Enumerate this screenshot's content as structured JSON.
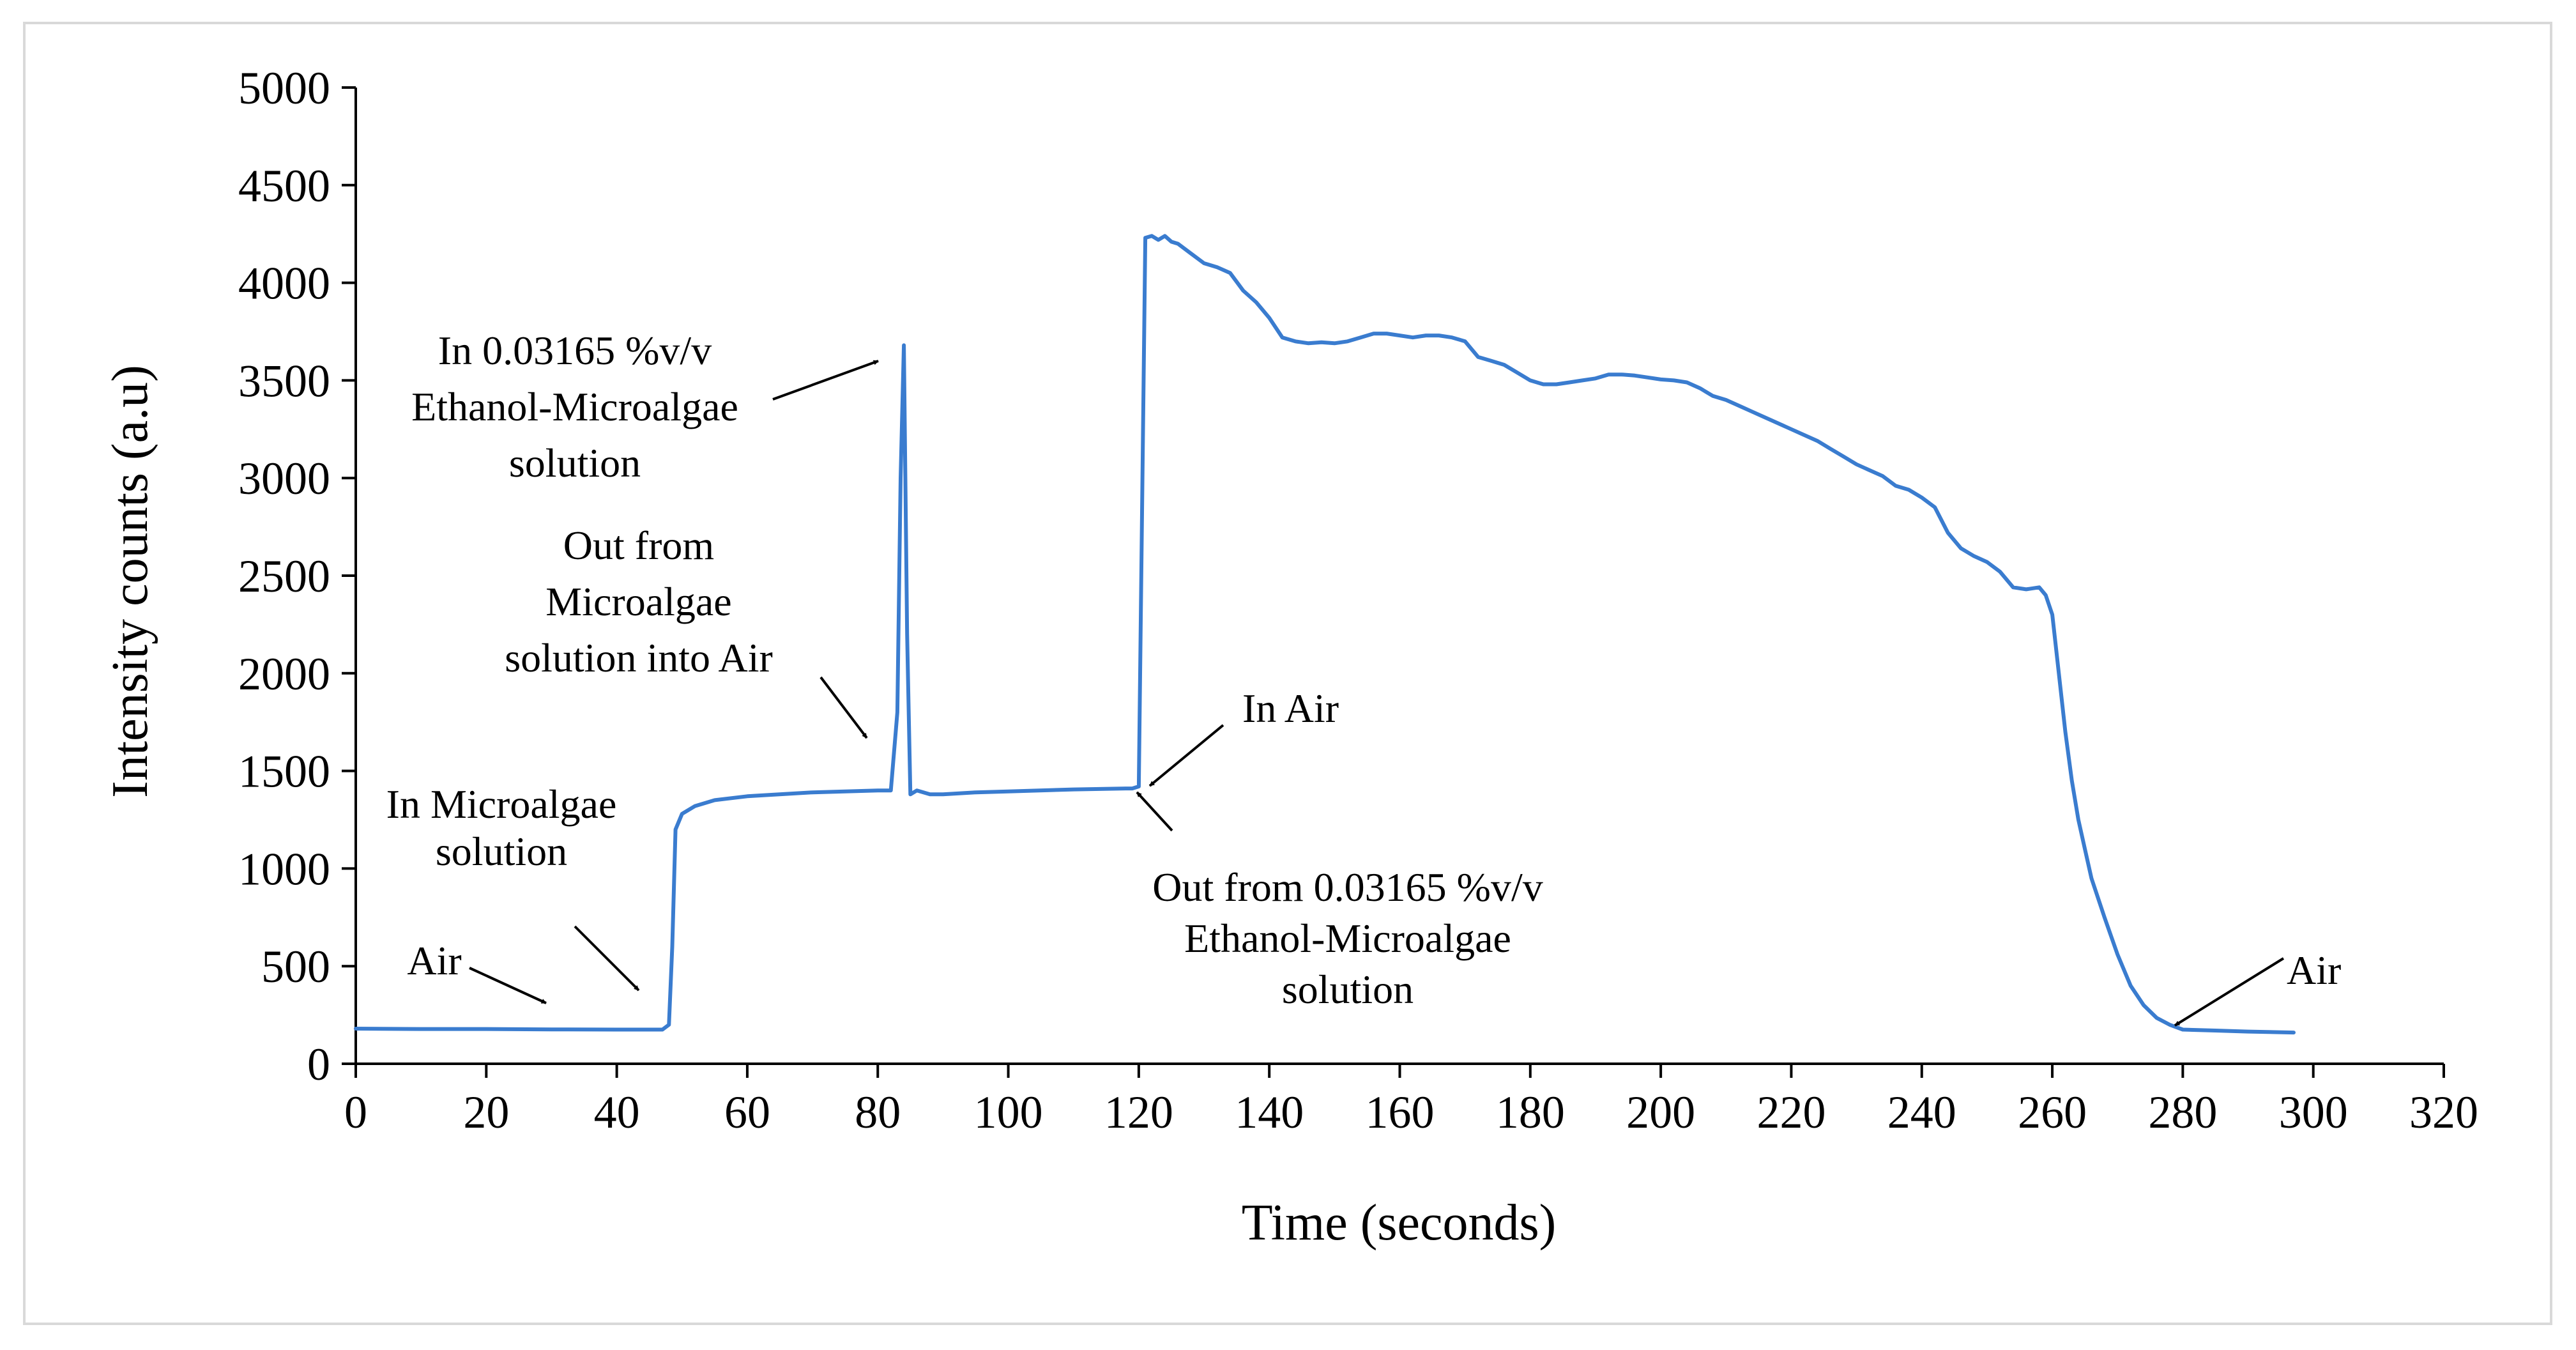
{
  "chart_data": {
    "type": "line",
    "title": "",
    "xlabel": "Time (seconds)",
    "ylabel": "Intensity counts (a.u)",
    "xlim": [
      0,
      320
    ],
    "ylim": [
      0,
      5000
    ],
    "xticks": [
      0,
      20,
      40,
      60,
      80,
      100,
      120,
      140,
      160,
      180,
      200,
      220,
      240,
      260,
      280,
      300,
      320
    ],
    "yticks": [
      0,
      500,
      1000,
      1500,
      2000,
      2500,
      3000,
      3500,
      4000,
      4500,
      5000
    ],
    "grid": false,
    "line_color": "#3a7ccf",
    "series": [
      {
        "name": "Intensity",
        "x": [
          0,
          10,
          20,
          30,
          40,
          47,
          48,
          48.5,
          49,
          50,
          52,
          55,
          60,
          70,
          80,
          82,
          83,
          83.5,
          84,
          84.5,
          85,
          86,
          88,
          90,
          95,
          100,
          110,
          118,
          119,
          120,
          121,
          122,
          123,
          124,
          125,
          126,
          128,
          130,
          132,
          134,
          136,
          138,
          140,
          142,
          144,
          146,
          148,
          150,
          152,
          154,
          156,
          158,
          160,
          162,
          164,
          166,
          168,
          170,
          172,
          174,
          176,
          178,
          180,
          182,
          184,
          186,
          188,
          190,
          192,
          194,
          196,
          198,
          200,
          202,
          204,
          206,
          208,
          210,
          212,
          214,
          216,
          218,
          220,
          222,
          224,
          226,
          228,
          230,
          232,
          234,
          236,
          238,
          240,
          242,
          244,
          246,
          248,
          250,
          252,
          254,
          256,
          258,
          259,
          260,
          261,
          262,
          263,
          264,
          265,
          266,
          268,
          270,
          272,
          274,
          276,
          278,
          280,
          285,
          290,
          297
        ],
        "values": [
          180,
          178,
          178,
          176,
          175,
          175,
          200,
          600,
          1200,
          1280,
          1320,
          1350,
          1370,
          1390,
          1400,
          1400,
          1800,
          3000,
          3680,
          2200,
          1380,
          1400,
          1380,
          1380,
          1390,
          1395,
          1405,
          1410,
          1410,
          1420,
          4230,
          4240,
          4220,
          4240,
          4210,
          4200,
          4150,
          4100,
          4080,
          4050,
          3960,
          3900,
          3820,
          3720,
          3700,
          3690,
          3695,
          3690,
          3700,
          3720,
          3740,
          3740,
          3730,
          3720,
          3730,
          3730,
          3720,
          3700,
          3620,
          3600,
          3580,
          3540,
          3500,
          3480,
          3480,
          3490,
          3500,
          3510,
          3530,
          3530,
          3525,
          3515,
          3505,
          3500,
          3490,
          3460,
          3420,
          3400,
          3370,
          3340,
          3310,
          3280,
          3250,
          3220,
          3190,
          3150,
          3110,
          3070,
          3040,
          3010,
          2960,
          2940,
          2900,
          2850,
          2720,
          2640,
          2600,
          2570,
          2520,
          2440,
          2430,
          2440,
          2400,
          2300,
          2000,
          1700,
          1450,
          1250,
          1100,
          950,
          750,
          560,
          400,
          300,
          235,
          200,
          175,
          170,
          165,
          160
        ]
      }
    ],
    "annotations": [
      {
        "id": "air-start",
        "lines": [
          "Air"
        ],
        "target_x": 30,
        "target_y": 178
      },
      {
        "id": "in-microalgae",
        "lines": [
          "In Microalgae",
          "solution"
        ],
        "target_x": 44,
        "target_y": 178
      },
      {
        "id": "out-microalgae",
        "lines": [
          "Out from",
          "Microalgae",
          "solution into Air"
        ],
        "target_x": 79,
        "target_y": 1400
      },
      {
        "id": "in-ethanol",
        "lines": [
          "In 0.03165 %v/v",
          "Ethanol-Microalgae",
          "solution"
        ],
        "target_x": 83,
        "target_y": 3600
      },
      {
        "id": "in-air",
        "lines": [
          "In Air"
        ],
        "target_x": 120,
        "target_y": 1420
      },
      {
        "id": "out-ethanol",
        "lines": [
          "Out from 0.03165 %v/v",
          "Ethanol-Microalgae",
          "solution"
        ],
        "target_x": 118,
        "target_y": 1400
      },
      {
        "id": "air-end",
        "lines": [
          "Air"
        ],
        "target_x": 277,
        "target_y": 210
      }
    ]
  }
}
